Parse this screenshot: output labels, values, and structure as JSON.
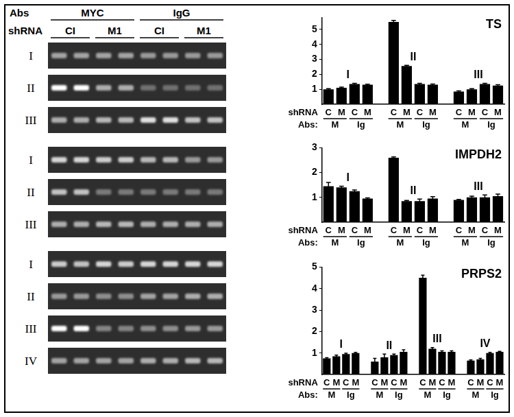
{
  "gel": {
    "abs_label": "Abs",
    "shrna_label": "shRNA",
    "abs": [
      "MYC",
      "IgG"
    ],
    "shrna": [
      "CI",
      "M1",
      "CI",
      "M1"
    ],
    "panels": [
      {
        "rows": [
          {
            "label": "I",
            "bands": [
              0.55,
              0.55,
              0.55,
              0.55,
              0.5,
              0.5,
              0.5,
              0.5
            ]
          },
          {
            "label": "II",
            "bands": [
              1.0,
              1.0,
              0.6,
              0.6,
              0.3,
              0.3,
              0.3,
              0.3
            ]
          },
          {
            "label": "III",
            "bands": [
              0.6,
              0.6,
              0.65,
              0.65,
              0.85,
              0.85,
              0.7,
              0.7
            ]
          }
        ]
      },
      {
        "rows": [
          {
            "label": "I",
            "bands": [
              0.8,
              0.8,
              0.75,
              0.75,
              0.65,
              0.65,
              0.5,
              0.5
            ]
          },
          {
            "label": "II",
            "bands": [
              0.7,
              0.7,
              0.35,
              0.35,
              0.35,
              0.35,
              0.35,
              0.35
            ]
          },
          {
            "label": "III",
            "bands": [
              0.6,
              0.6,
              0.65,
              0.65,
              0.6,
              0.6,
              0.6,
              0.6
            ]
          }
        ]
      },
      {
        "rows": [
          {
            "label": "I",
            "bands": [
              0.75,
              0.7,
              0.8,
              0.75,
              0.8,
              0.8,
              0.8,
              0.8
            ]
          },
          {
            "label": "II",
            "bands": [
              0.5,
              0.5,
              0.45,
              0.45,
              0.55,
              0.55,
              0.6,
              0.6
            ]
          },
          {
            "label": "III",
            "bands": [
              1.0,
              1.0,
              0.4,
              0.4,
              0.45,
              0.45,
              0.5,
              0.5
            ]
          },
          {
            "label": "IV",
            "bands": [
              0.55,
              0.55,
              0.55,
              0.55,
              0.6,
              0.6,
              0.65,
              0.65
            ]
          }
        ]
      }
    ]
  },
  "chart_data": [
    {
      "type": "bar",
      "title": "TS",
      "color": "#000000",
      "ylim": [
        0,
        5.8
      ],
      "yticks": [
        1,
        2,
        3,
        4,
        5
      ],
      "grid": false,
      "row_labels": [
        "shRNA",
        "Abs:"
      ],
      "groups": [
        {
          "label": "I",
          "shRNA": [
            "C",
            "M",
            "C",
            "M"
          ],
          "abs": [
            "M",
            "Ig"
          ],
          "values": [
            1.0,
            1.1,
            1.35,
            1.3
          ],
          "errors": [
            0.04,
            0.05,
            0.05,
            0.04
          ]
        },
        {
          "label": "II",
          "shRNA": [
            "C",
            "M",
            "C",
            "M"
          ],
          "abs": [
            "M",
            "Ig"
          ],
          "values": [
            5.5,
            2.55,
            1.35,
            1.3
          ],
          "errors": [
            0.1,
            0.05,
            0.05,
            0.05
          ]
        },
        {
          "label": "III",
          "shRNA": [
            "C",
            "M",
            "C",
            "M"
          ],
          "abs": [
            "M",
            "Ig"
          ],
          "values": [
            0.85,
            1.0,
            1.35,
            1.25
          ],
          "errors": [
            0.04,
            0.04,
            0.05,
            0.05
          ]
        }
      ]
    },
    {
      "type": "bar",
      "title": "IMPDH2",
      "color": "#000000",
      "ylim": [
        0,
        3
      ],
      "yticks": [
        1,
        2,
        3
      ],
      "grid": false,
      "row_labels": [
        "shRNA",
        "Abs:"
      ],
      "groups": [
        {
          "label": "I",
          "shRNA": [
            "C",
            "M",
            "C",
            "M"
          ],
          "abs": [
            "M",
            "Ig"
          ],
          "values": [
            1.45,
            1.4,
            1.25,
            0.95
          ],
          "errors": [
            0.15,
            0.05,
            0.05,
            0.03
          ]
        },
        {
          "label": "II",
          "shRNA": [
            "C",
            "M",
            "C",
            "M"
          ],
          "abs": [
            "M",
            "Ig"
          ],
          "values": [
            2.6,
            0.85,
            0.85,
            0.95
          ],
          "errors": [
            0.03,
            0.03,
            0.08,
            0.08
          ]
        },
        {
          "label": "III",
          "shRNA": [
            "C",
            "M",
            "C",
            "M"
          ],
          "abs": [
            "M",
            "Ig"
          ],
          "values": [
            0.9,
            1.0,
            1.0,
            1.05
          ],
          "errors": [
            0.02,
            0.05,
            0.1,
            0.08
          ]
        }
      ]
    },
    {
      "type": "bar",
      "title": "PRPS2",
      "color": "#000000",
      "ylim": [
        0,
        5
      ],
      "yticks": [
        1,
        2,
        3,
        4,
        5
      ],
      "grid": false,
      "row_labels": [
        "shRNA",
        "Abs:"
      ],
      "groups": [
        {
          "label": "I",
          "shRNA": [
            "C",
            "M",
            "C",
            "M"
          ],
          "abs": [
            "M",
            "Ig"
          ],
          "values": [
            0.75,
            0.85,
            0.95,
            1.0
          ],
          "errors": [
            0.03,
            0.05,
            0.04,
            0.03
          ]
        },
        {
          "label": "II",
          "shRNA": [
            "C",
            "M",
            "C",
            "M"
          ],
          "abs": [
            "M",
            "Ig"
          ],
          "values": [
            0.6,
            0.8,
            0.9,
            1.05
          ],
          "errors": [
            0.15,
            0.15,
            0.05,
            0.1
          ]
        },
        {
          "label": "III",
          "shRNA": [
            "C",
            "M",
            "C",
            "M"
          ],
          "abs": [
            "M",
            "Ig"
          ],
          "values": [
            4.5,
            1.2,
            1.05,
            1.05
          ],
          "errors": [
            0.12,
            0.05,
            0.05,
            0.05
          ]
        },
        {
          "label": "IV",
          "shRNA": [
            "C",
            "M",
            "C",
            "M"
          ],
          "abs": [
            "M",
            "Ig"
          ],
          "values": [
            0.65,
            0.7,
            1.0,
            1.05
          ],
          "errors": [
            0.03,
            0.05,
            0.03,
            0.03
          ]
        }
      ]
    }
  ]
}
